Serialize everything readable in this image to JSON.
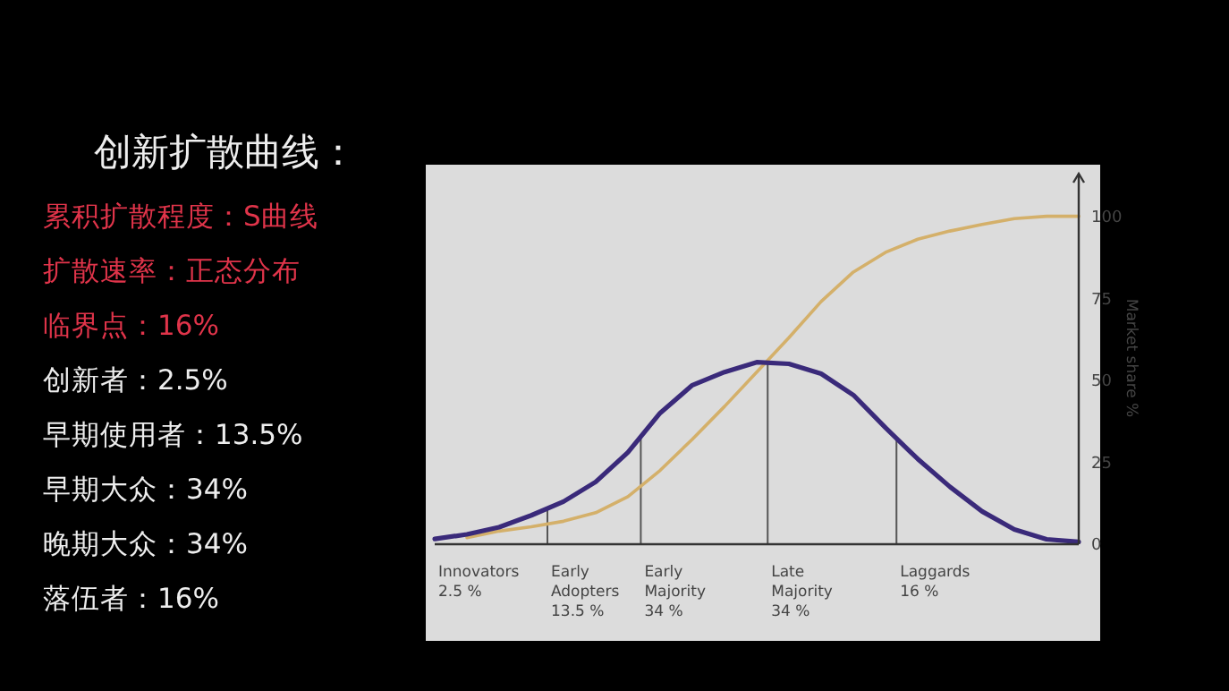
{
  "chart_data": {
    "type": "line",
    "title": "创新扩散曲线：",
    "ylabel": "Market share %",
    "categories": [
      null,
      null,
      null,
      null,
      null,
      null,
      null,
      null,
      null,
      null,
      null,
      null,
      null,
      null,
      null,
      null,
      null,
      null,
      null,
      null,
      null
    ],
    "ylim": [
      0,
      113
    ],
    "yticks": [
      0,
      25,
      50,
      75,
      100
    ],
    "tick_labels": "y",
    "marker": "none",
    "line_style": "solid",
    "series": [
      {
        "color": "#d4b06a",
        "values": [
          null,
          2,
          4,
          5.3,
          7,
          9.6,
          14.5,
          22.5,
          32,
          42,
          52.5,
          63,
          74,
          83,
          89,
          93,
          95.5,
          97.5,
          99.3,
          100,
          100
        ]
      },
      {
        "color": "#3a2a7a",
        "values": [
          1.6,
          3,
          5.2,
          8.8,
          13,
          19,
          28,
          40,
          48.5,
          52.5,
          55.5,
          55,
          52,
          45.5,
          35.5,
          26,
          17.5,
          10,
          4.5,
          1.5,
          0.7
        ]
      }
    ],
    "annotations": [
      "累积扩散程度：S曲线",
      "扩散速率：正态分布",
      "临界点：16%",
      "创新者：2.5%",
      "早期使用者：13.5%",
      "早期大众：34%",
      "晚期大众：34%",
      "落伍者：16%",
      "Innovators\n2.5 %",
      "Early\nAdopters\n13.5 %",
      "Early\nMajority\n34 %",
      "Late\nMajority\n34 %",
      "Laggards\n16 %"
    ]
  }
}
